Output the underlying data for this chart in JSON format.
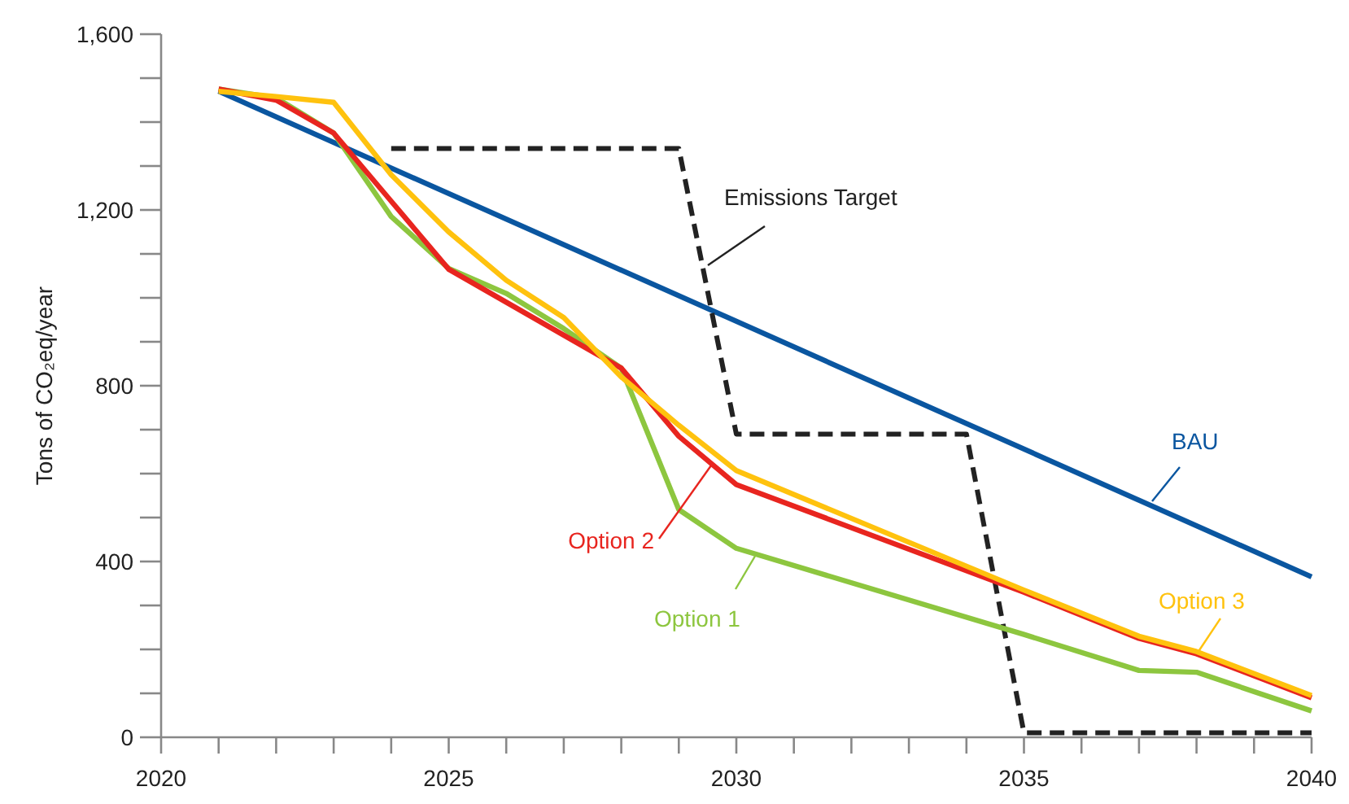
{
  "chart_data": {
    "type": "line",
    "ylabel": "Tons of CO₂eq/year",
    "xlim": [
      2020,
      2040
    ],
    "ylim": [
      0,
      1600
    ],
    "xticks": [
      2020,
      {
        "value": 2021,
        "label": null
      },
      {
        "value": 2022,
        "label": null
      },
      {
        "value": 2023,
        "label": null
      },
      {
        "value": 2024,
        "label": null
      },
      2025,
      {
        "value": 2026,
        "label": null
      },
      {
        "value": 2027,
        "label": null
      },
      {
        "value": 2028,
        "label": null
      },
      {
        "value": 2029,
        "label": null
      },
      2030,
      {
        "value": 2031,
        "label": null
      },
      {
        "value": 2032,
        "label": null
      },
      {
        "value": 2033,
        "label": null
      },
      {
        "value": 2034,
        "label": null
      },
      2035,
      {
        "value": 2036,
        "label": null
      },
      {
        "value": 2037,
        "label": null
      },
      {
        "value": 2038,
        "label": null
      },
      {
        "value": 2039,
        "label": null
      },
      2040
    ],
    "yticks": [
      {
        "value": 0,
        "label": "0"
      },
      {
        "value": 100,
        "label": null
      },
      {
        "value": 200,
        "label": null
      },
      {
        "value": 300,
        "label": null
      },
      {
        "value": 400,
        "label": "400"
      },
      {
        "value": 500,
        "label": null
      },
      {
        "value": 600,
        "label": null
      },
      {
        "value": 700,
        "label": null
      },
      {
        "value": 800,
        "label": "800"
      },
      {
        "value": 900,
        "label": null
      },
      {
        "value": 1000,
        "label": null
      },
      {
        "value": 1100,
        "label": null
      },
      {
        "value": 1200,
        "label": "1,200"
      },
      {
        "value": 1300,
        "label": null
      },
      {
        "value": 1400,
        "label": null
      },
      {
        "value": 1500,
        "label": null
      },
      {
        "value": 1600,
        "label": "1,600"
      }
    ],
    "grid": false,
    "line_style": "solid",
    "marker": "none",
    "series": [
      {
        "name": "BAU",
        "color": "#0a56a0",
        "x": [
          2021,
          2040
        ],
        "values": [
          1470,
          365
        ]
      },
      {
        "name": "Emissions Target",
        "color": "#222222",
        "line_style": "dashed",
        "x": [
          2024,
          2029,
          2030,
          2034,
          2035,
          2040
        ],
        "values": [
          1340,
          1340,
          690,
          690,
          10,
          10
        ]
      },
      {
        "name": "Option 1",
        "color": "#8dc63f",
        "x": [
          2021,
          2022,
          2023,
          2024,
          2025,
          2026,
          2027,
          2028,
          2029,
          2030,
          2035,
          2037,
          2038,
          2040
        ],
        "values": [
          1475,
          1455,
          1375,
          1185,
          1067,
          1010,
          930,
          840,
          518,
          430,
          234,
          152,
          148,
          60
        ]
      },
      {
        "name": "Option 2",
        "color": "#e8251f",
        "x": [
          2021,
          2022,
          2023,
          2024,
          2025,
          2026,
          2027,
          2028,
          2029,
          2030,
          2035,
          2037,
          2038,
          2040
        ],
        "values": [
          1475,
          1450,
          1375,
          1220,
          1065,
          990,
          915,
          840,
          685,
          575,
          330,
          225,
          190,
          90
        ]
      },
      {
        "name": "Option 3",
        "color": "#ffc20e",
        "x": [
          2021,
          2022,
          2023,
          2024,
          2025,
          2026,
          2027,
          2028,
          2029,
          2030,
          2035,
          2037,
          2038,
          2040
        ],
        "values": [
          1470,
          1458,
          1445,
          1280,
          1150,
          1040,
          955,
          820,
          710,
          607,
          335,
          230,
          195,
          95
        ]
      }
    ]
  }
}
